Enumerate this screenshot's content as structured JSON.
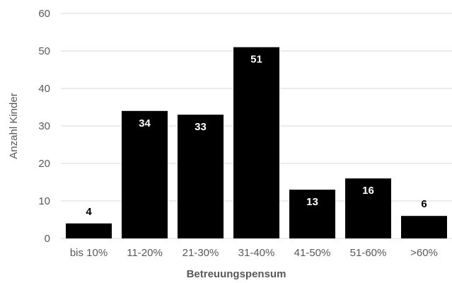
{
  "chart_data": {
    "type": "bar",
    "title": "",
    "xlabel": "Betreuungspensum",
    "ylabel": "Anzahl Kinder",
    "categories": [
      "bis 10%",
      "11-20%",
      "21-30%",
      "31-40%",
      "41-50%",
      "51-60%",
      ">60%"
    ],
    "values": [
      4,
      34,
      33,
      51,
      13,
      16,
      6
    ],
    "data_labels": [
      "4",
      "34",
      "33",
      "51",
      "13",
      "16",
      "6"
    ],
    "yticks": [
      "0",
      "10",
      "20",
      "30",
      "40",
      "50",
      "60"
    ],
    "ylim": [
      0,
      60
    ],
    "grid": true,
    "legend": "none",
    "colors": {
      "bar": "#000000",
      "gridline": "#d9d9d9",
      "axis_text": "#595959",
      "label_inside": "#ffffff",
      "label_outside": "#000000"
    }
  }
}
